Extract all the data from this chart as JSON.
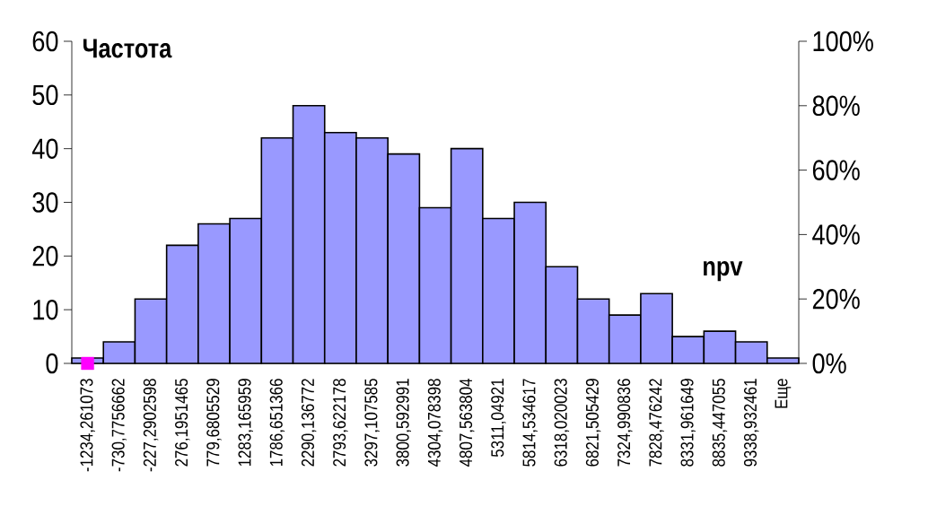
{
  "chart_data": {
    "type": "bar",
    "title": "npv",
    "ylabel": "Частота",
    "categories": [
      "-1234,261073",
      "-730,7756662",
      "-227,2902598",
      "276,1951465",
      "779,6805529",
      "1283,165959",
      "1786,651366",
      "2290,136772",
      "2793,622178",
      "3297,107585",
      "3800,592991",
      "4304,078398",
      "4807,563804",
      "5311,04921",
      "5814,534617",
      "6318,020023",
      "6821,505429",
      "7324,990836",
      "7828,476242",
      "8331,961649",
      "8835,447055",
      "9338,932461",
      "Еще"
    ],
    "series": [
      {
        "color": "#9999ff",
        "values": [
          1,
          4,
          12,
          22,
          26,
          27,
          42,
          48,
          43,
          42,
          39,
          29,
          40,
          27,
          30,
          18,
          12,
          9,
          13,
          5,
          6,
          4,
          1
        ]
      },
      {
        "type": "scatter",
        "axis": "y2",
        "marker": "square",
        "color": "#ff00ff",
        "values": [
          0,
          null,
          null,
          null,
          null,
          null,
          null,
          null,
          null,
          null,
          null,
          null,
          null,
          null,
          null,
          null,
          null,
          null,
          null,
          null,
          null,
          null,
          null
        ]
      }
    ],
    "ylim": [
      0,
      60
    ],
    "yticks": [
      0,
      10,
      20,
      30,
      40,
      50,
      60
    ],
    "y2lim": [
      0,
      100
    ],
    "y2ticks": [
      {
        "value": 0,
        "label": "0%"
      },
      {
        "value": 20,
        "label": "20%"
      },
      {
        "value": 40,
        "label": "40%"
      },
      {
        "value": 60,
        "label": "60%"
      },
      {
        "value": 80,
        "label": "80%"
      },
      {
        "value": 100,
        "label": "100%"
      }
    ]
  }
}
